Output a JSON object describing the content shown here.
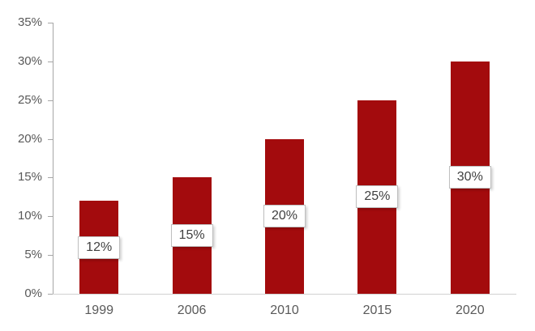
{
  "chart_data": {
    "type": "bar",
    "title": "",
    "xlabel": "",
    "ylabel": "",
    "categories": [
      "1999",
      "2006",
      "2010",
      "2015",
      "2020"
    ],
    "values": [
      12,
      15,
      20,
      25,
      30
    ],
    "data_labels": [
      "12%",
      "15%",
      "20%",
      "25%",
      "30%"
    ],
    "y_tick_values": [
      0,
      5,
      10,
      15,
      20,
      25,
      30,
      35
    ],
    "y_tick_labels": [
      "0%",
      "5%",
      "10%",
      "15%",
      "20%",
      "25%",
      "30%",
      "35%"
    ],
    "ylim": [
      0,
      35
    ],
    "grid": false,
    "legend": false,
    "colors": {
      "bar_fill": "#A30B0D",
      "label_box_bg": "#FFFFFF",
      "label_box_border": "#BFBFBF",
      "label_text": "#404040",
      "axis_text": "#595959",
      "axis_line": "#A6A6A6",
      "baseline": "#D2D2D2"
    }
  }
}
